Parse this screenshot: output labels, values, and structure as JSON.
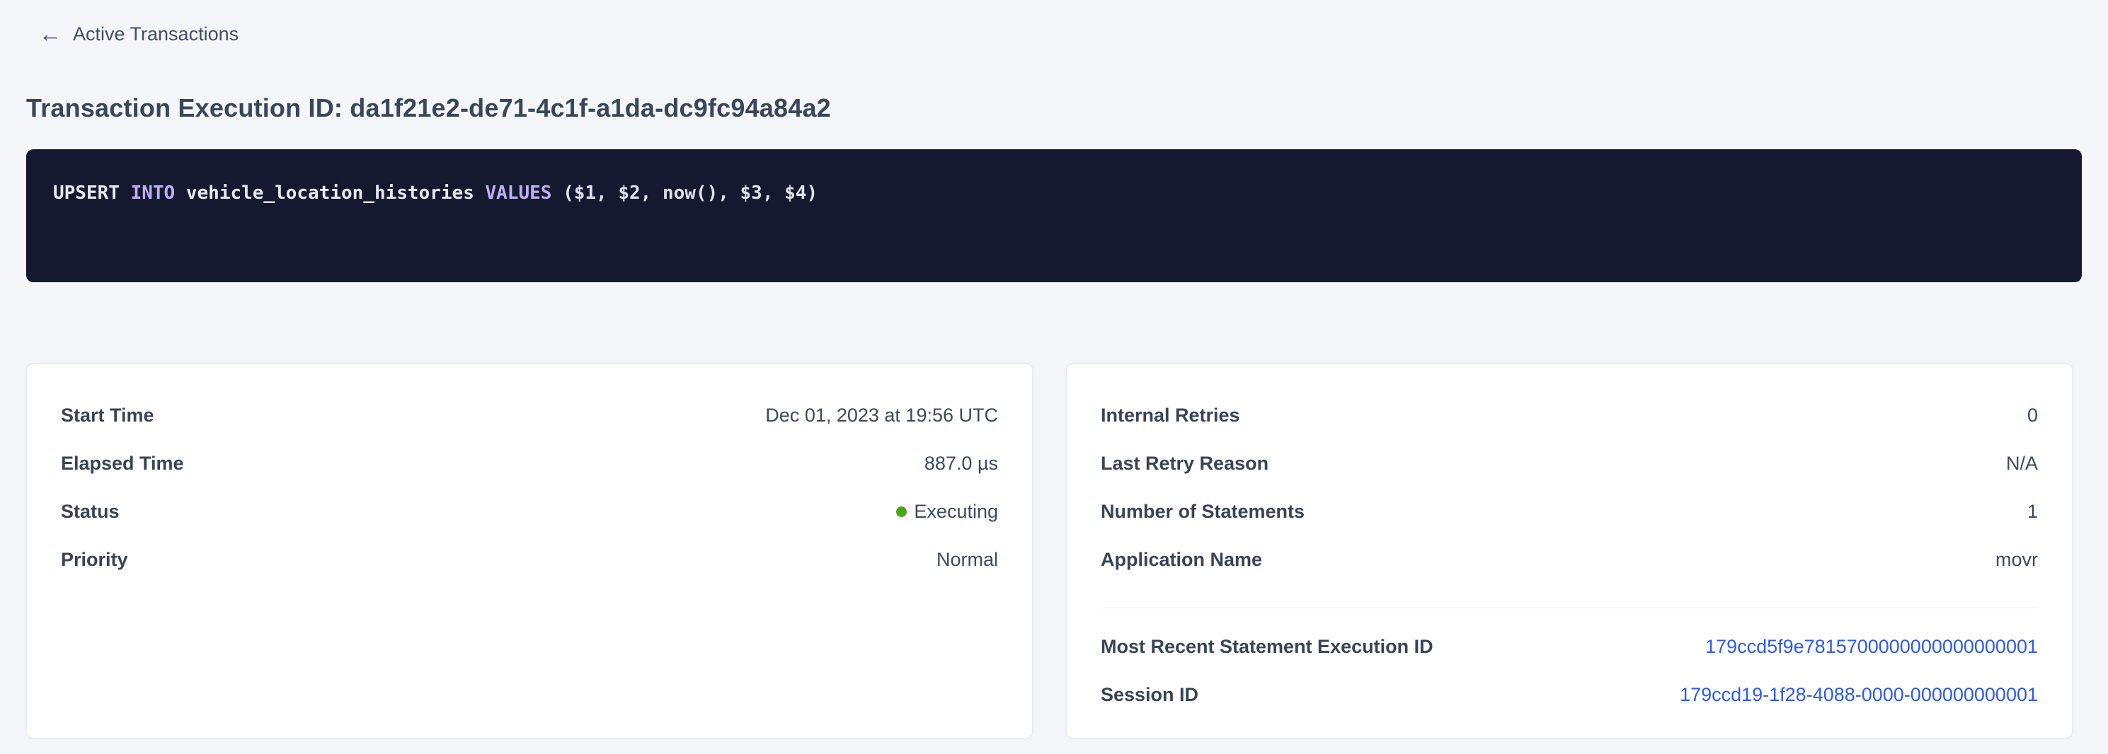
{
  "colors": {
    "page_background": "#f5f6fa",
    "code_background": "#141930",
    "keyword_purple": "#c0aff0",
    "link_blue": "#2d5af5",
    "status_green": "#4aa31c",
    "text_dark": "#394455"
  },
  "back_link": {
    "label": "Active Transactions",
    "icon": "arrow-left"
  },
  "page_title": "Transaction Execution ID: da1f21e2-de71-4c1f-a1da-dc9fc94a84a2",
  "sql_statement": {
    "full_text": "UPSERT INTO vehicle_location_histories VALUES ($1, $2, now(), $3, $4)",
    "tokens": [
      {
        "text": "UPSERT",
        "type": "ident"
      },
      {
        "text": " ",
        "type": "plain"
      },
      {
        "text": "INTO",
        "type": "keyword"
      },
      {
        "text": " vehicle_location_histories ",
        "type": "ident"
      },
      {
        "text": "VALUES",
        "type": "keyword"
      },
      {
        "text": " ($1, $2, now(), $3, $4)",
        "type": "plain"
      }
    ]
  },
  "left_card": {
    "rows": [
      {
        "label": "Start Time",
        "value": "Dec 01, 2023 at 19:56 UTC"
      },
      {
        "label": "Elapsed Time",
        "value": "887.0 µs"
      },
      {
        "label": "Status",
        "value": "Executing"
      },
      {
        "label": "Priority",
        "value": "Normal"
      }
    ]
  },
  "right_card": {
    "rows": [
      {
        "label": "Internal Retries",
        "value": "0"
      },
      {
        "label": "Last Retry Reason",
        "value": "N/A"
      },
      {
        "label": "Number of Statements",
        "value": "1"
      },
      {
        "label": "Application Name",
        "value": "movr"
      }
    ],
    "link_rows": [
      {
        "label": "Most Recent Statement Execution ID",
        "value": "179ccd5f9e7815700000000000000001"
      },
      {
        "label": "Session ID",
        "value": "179ccd19-1f28-4088-0000-000000000001"
      }
    ]
  }
}
